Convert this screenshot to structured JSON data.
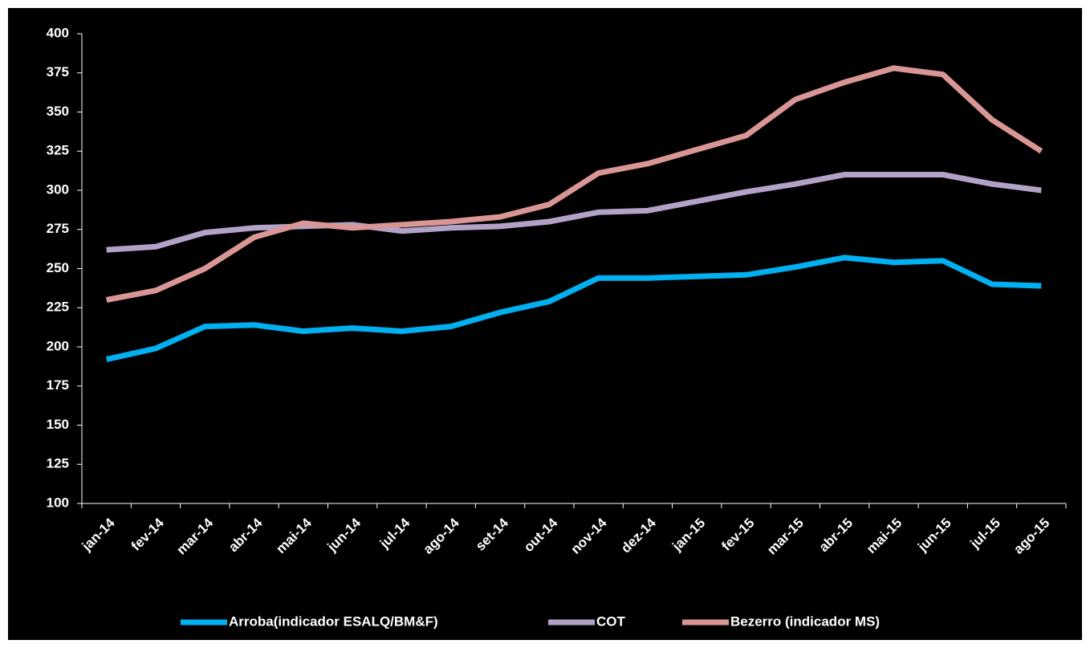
{
  "chart_data": {
    "type": "line",
    "categories": [
      "jan-14",
      "fev-14",
      "mar-14",
      "abr-14",
      "mai-14",
      "jun-14",
      "jul-14",
      "ago-14",
      "set-14",
      "out-14",
      "nov-14",
      "dez-14",
      "jan-15",
      "fev-15",
      "mar-15",
      "abr-15",
      "mai-15",
      "jun-15",
      "jul-15",
      "ago-15"
    ],
    "series": [
      {
        "name": "Arroba(indicador ESALQ/BM&F)",
        "color": "#00b0f0",
        "values": [
          192,
          199,
          213,
          214,
          210,
          212,
          210,
          213,
          222,
          229,
          244,
          244,
          245,
          246,
          251,
          257,
          254,
          255,
          240,
          239
        ]
      },
      {
        "name": "COT",
        "color": "#b3a2c7",
        "values": [
          262,
          264,
          273,
          276,
          277,
          278,
          274,
          276,
          277,
          280,
          286,
          287,
          293,
          299,
          304,
          310,
          310,
          310,
          304,
          300
        ]
      },
      {
        "name": "Bezerro (indicador MS)",
        "color": "#d99694",
        "values": [
          230,
          236,
          250,
          270,
          279,
          276,
          278,
          280,
          283,
          291,
          311,
          317,
          326,
          335,
          358,
          369,
          378,
          374,
          345,
          325
        ]
      }
    ],
    "ylim": [
      100,
      400
    ],
    "yticks": [
      100,
      125,
      150,
      175,
      200,
      225,
      250,
      275,
      300,
      325,
      350,
      375,
      400
    ],
    "legend": "bottom"
  }
}
